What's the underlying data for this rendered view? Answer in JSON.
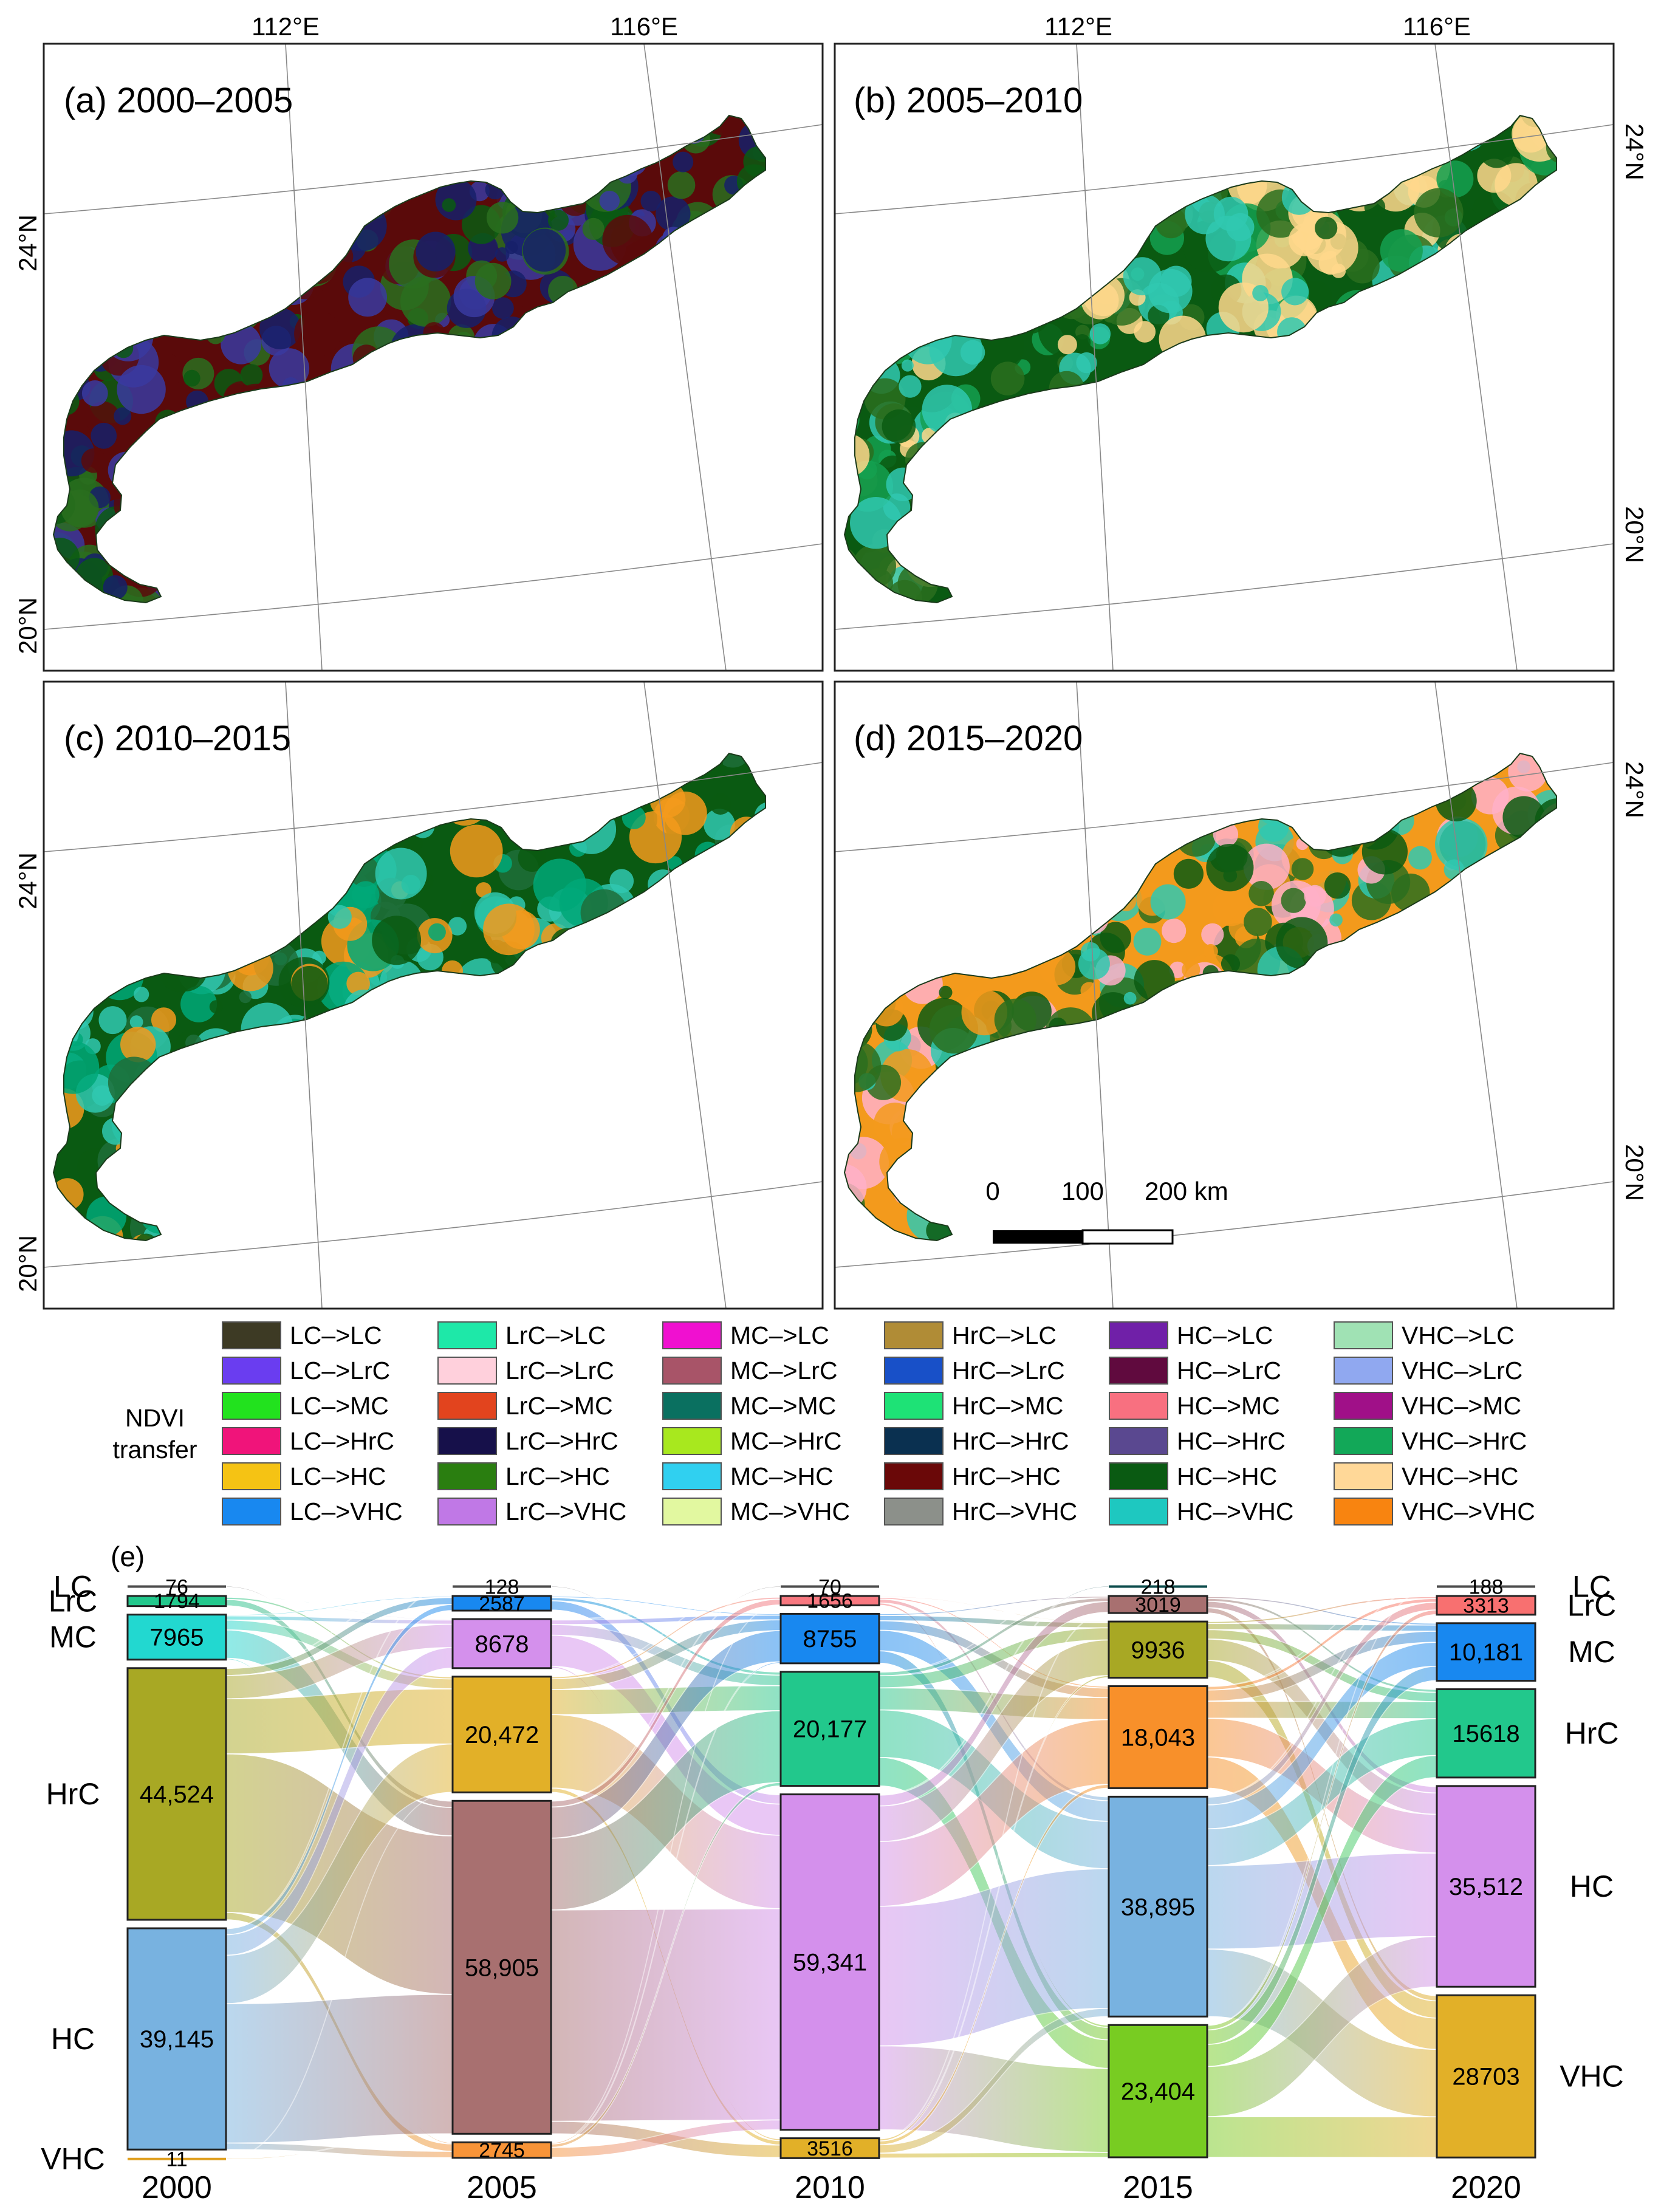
{
  "maps": {
    "lon_labels": [
      "112°E",
      "116°E"
    ],
    "lat_labels": [
      "24°N",
      "20°N"
    ],
    "panels": [
      {
        "label": "(a) 2000–2005",
        "dominant": [
          "#5a0a0a",
          "#0a5a12",
          "#2a6e1e",
          "#16206a",
          "#3a3aa0"
        ]
      },
      {
        "label": "(b) 2005–2010",
        "dominant": [
          "#0a5a12",
          "#2a6e1e",
          "#14a050",
          "#30c8b0",
          "#ffd88c"
        ]
      },
      {
        "label": "(c) 2010–2015",
        "dominant": [
          "#0a5a12",
          "#30c8b0",
          "#00a878",
          "#1e6e3a",
          "#f39a1c"
        ]
      },
      {
        "label": "(d) 2015–2020",
        "dominant": [
          "#f39a1c",
          "#0a5a12",
          "#2a6e1e",
          "#30c8b0",
          "#ffb0c8"
        ]
      }
    ],
    "scale_bar": {
      "ticks": [
        "0",
        "100",
        "200 km"
      ]
    }
  },
  "legend": {
    "title_line1": "NDVI",
    "title_line2": "transfer",
    "columns": [
      [
        {
          "label": "LC–>LC",
          "color": "#3d3a24"
        },
        {
          "label": "LC–>LrC",
          "color": "#6a3df0"
        },
        {
          "label": "LC–>MC",
          "color": "#22e21e"
        },
        {
          "label": "LC–>HrC",
          "color": "#f0147a"
        },
        {
          "label": "LC–>HC",
          "color": "#f5c314"
        },
        {
          "label": "LC–>VHC",
          "color": "#1888f0"
        }
      ],
      [
        {
          "label": "LrC–>LC",
          "color": "#1ee8a8"
        },
        {
          "label": "LrC–>LrC",
          "color": "#ffd0dc"
        },
        {
          "label": "LrC–>MC",
          "color": "#e2441e"
        },
        {
          "label": "LrC–>HrC",
          "color": "#16104a"
        },
        {
          "label": "LrC–>HC",
          "color": "#2a7e10"
        },
        {
          "label": "LrC–>VHC",
          "color": "#c078e6"
        }
      ],
      [
        {
          "label": "MC–>LC",
          "color": "#f010d0"
        },
        {
          "label": "MC–>LrC",
          "color": "#a85468"
        },
        {
          "label": "MC–>MC",
          "color": "#0a7060"
        },
        {
          "label": "MC–>HrC",
          "color": "#a8e81e"
        },
        {
          "label": "MC–>HC",
          "color": "#30d0f0"
        },
        {
          "label": "MC–>VHC",
          "color": "#e2f8a0"
        }
      ],
      [
        {
          "label": "HrC–>LC",
          "color": "#b08c36"
        },
        {
          "label": "HrC–>LrC",
          "color": "#1850c8"
        },
        {
          "label": "HrC–>MC",
          "color": "#1ee276"
        },
        {
          "label": "HrC–>HrC",
          "color": "#0a3050"
        },
        {
          "label": "HrC–>HC",
          "color": "#6a0808"
        },
        {
          "label": "HrC–>VHC",
          "color": "#8c908a"
        }
      ],
      [
        {
          "label": "HC–>LC",
          "color": "#7020a8"
        },
        {
          "label": "HC–>LrC",
          "color": "#600a3e"
        },
        {
          "label": "HC–>MC",
          "color": "#f87080"
        },
        {
          "label": "HC–>HrC",
          "color": "#5a4890"
        },
        {
          "label": "HC–>HC",
          "color": "#0a5a12"
        },
        {
          "label": "HC–>VHC",
          "color": "#1ec8c0"
        }
      ],
      [
        {
          "label": "VHC–>LC",
          "color": "#a0e2b4"
        },
        {
          "label": "VHC–>LrC",
          "color": "#90a8f0"
        },
        {
          "label": "VHC–>MC",
          "color": "#a01088"
        },
        {
          "label": "VHC–>HrC",
          "color": "#12a858"
        },
        {
          "label": "VHC–>HC",
          "color": "#ffd898"
        },
        {
          "label": "VHC–>VHC",
          "color": "#f88410"
        }
      ]
    ]
  },
  "sankey": {
    "panel_label": "(e)",
    "classes": [
      "LC",
      "LrC",
      "MC",
      "HrC",
      "HC",
      "VHC"
    ],
    "years": [
      "2000",
      "2005",
      "2010",
      "2015",
      "2020"
    ],
    "nodes": [
      {
        "year": "2000",
        "items": [
          {
            "class": "LC",
            "value": 76,
            "label": "76",
            "color": "#4a4a4a"
          },
          {
            "class": "LrC",
            "value": 1794,
            "label": "1794",
            "color": "#22c88c"
          },
          {
            "class": "MC",
            "value": 7965,
            "label": "7965",
            "color": "#22d8d0"
          },
          {
            "class": "HrC",
            "value": 44524,
            "label": "44,524",
            "color": "#a8a824"
          },
          {
            "class": "HC",
            "value": 39145,
            "label": "39,145",
            "color": "#78b2e0"
          },
          {
            "class": "VHC",
            "value": 11,
            "label": "11",
            "color": "#e0a020"
          }
        ]
      },
      {
        "year": "2005",
        "items": [
          {
            "class": "LC",
            "value": 128,
            "label": "128",
            "color": "#4a4a4a"
          },
          {
            "class": "LrC",
            "value": 2587,
            "label": "2587",
            "color": "#1888f0"
          },
          {
            "class": "MC",
            "value": 8678,
            "label": "8678",
            "color": "#d490ec"
          },
          {
            "class": "HrC",
            "value": 20472,
            "label": "20,472",
            "color": "#e2b028"
          },
          {
            "class": "HC",
            "value": 58905,
            "label": "58,905",
            "color": "#a87070"
          },
          {
            "class": "VHC",
            "value": 2745,
            "label": "2745",
            "color": "#f89438"
          }
        ]
      },
      {
        "year": "2010",
        "items": [
          {
            "class": "LC",
            "value": 70,
            "label": "70",
            "color": "#4a4a4a"
          },
          {
            "class": "LrC",
            "value": 1656,
            "label": "1656",
            "color": "#f87880"
          },
          {
            "class": "MC",
            "value": 8755,
            "label": "8755",
            "color": "#1888f0"
          },
          {
            "class": "HrC",
            "value": 20177,
            "label": "20,177",
            "color": "#22c88c"
          },
          {
            "class": "HC",
            "value": 59341,
            "label": "59,341",
            "color": "#d490ec"
          },
          {
            "class": "VHC",
            "value": 3516,
            "label": "3516",
            "color": "#e2b028"
          }
        ]
      },
      {
        "year": "2015",
        "items": [
          {
            "class": "LC",
            "value": 218,
            "label": "218",
            "color": "#0a4a4a"
          },
          {
            "class": "LrC",
            "value": 3019,
            "label": "3019",
            "color": "#a87070"
          },
          {
            "class": "MC",
            "value": 9936,
            "label": "9936",
            "color": "#a8a824"
          },
          {
            "class": "HrC",
            "value": 18043,
            "label": "18,043",
            "color": "#f8902a"
          },
          {
            "class": "HC",
            "value": 38895,
            "label": "38,895",
            "color": "#78b2e0"
          },
          {
            "class": "VHC",
            "value": 23404,
            "label": "23,404",
            "color": "#78cc22"
          }
        ]
      },
      {
        "year": "2020",
        "items": [
          {
            "class": "LC",
            "value": 188,
            "label": "188",
            "color": "#4a4a4a"
          },
          {
            "class": "LrC",
            "value": 3313,
            "label": "3313",
            "color": "#f87070"
          },
          {
            "class": "MC",
            "value": 10181,
            "label": "10,181",
            "color": "#1888f0"
          },
          {
            "class": "HrC",
            "value": 15618,
            "label": "15618",
            "color": "#22c88c"
          },
          {
            "class": "HC",
            "value": 35512,
            "label": "35,512",
            "color": "#d490ec"
          },
          {
            "class": "VHC",
            "value": 28703,
            "label": "28703",
            "color": "#e2b028"
          }
        ]
      }
    ]
  }
}
